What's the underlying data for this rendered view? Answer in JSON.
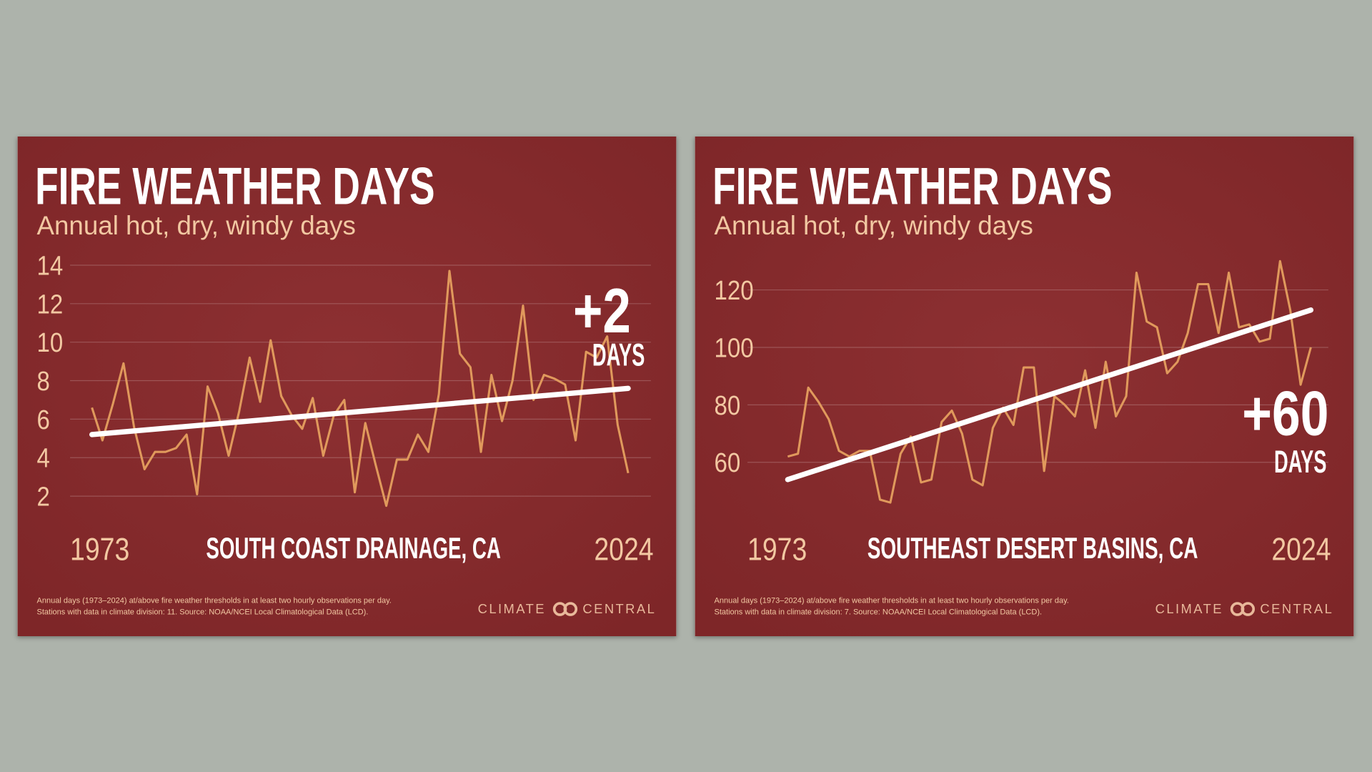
{
  "chart_data": [
    {
      "type": "line",
      "title": "FIRE WEATHER DAYS",
      "subtitle": "Annual hot, dry, windy days",
      "region": "SOUTH COAST DRAINAGE, CA",
      "annotation": "+2",
      "annotation_unit": "DAYS",
      "footnote": [
        "Annual days (1973–2024) at/above fire weather thresholds in at least two hourly observations per day.",
        "Stations with data in climate division: 11. Source: NOAA/NCEI Local Climatological Data (LCD)."
      ],
      "brand": [
        "CLIMATE",
        "CENTRAL"
      ],
      "x": [
        1973,
        1974,
        1975,
        1976,
        1977,
        1978,
        1979,
        1980,
        1981,
        1982,
        1983,
        1984,
        1985,
        1986,
        1987,
        1988,
        1989,
        1990,
        1991,
        1992,
        1993,
        1994,
        1995,
        1996,
        1997,
        1998,
        1999,
        2000,
        2001,
        2002,
        2003,
        2004,
        2005,
        2006,
        2007,
        2008,
        2009,
        2010,
        2011,
        2012,
        2013,
        2014,
        2015,
        2016,
        2017,
        2018,
        2019,
        2020,
        2021,
        2022,
        2023,
        2024
      ],
      "values": [
        6.6,
        4.9,
        6.8,
        8.9,
        5.6,
        3.4,
        4.3,
        4.3,
        4.5,
        5.2,
        2.1,
        7.7,
        6.3,
        4.1,
        6.4,
        9.2,
        6.9,
        10.1,
        7.2,
        6.2,
        5.5,
        7.1,
        4.1,
        6.2,
        7.0,
        2.2,
        5.8,
        3.6,
        1.5,
        3.9,
        3.9,
        5.2,
        4.3,
        7.3,
        13.7,
        9.4,
        8.7,
        4.3,
        8.3,
        5.9,
        8.0,
        11.9,
        7.0,
        8.3,
        8.1,
        7.8,
        4.9,
        9.5,
        9.2,
        10.3,
        5.7,
        3.2
      ],
      "color": "#e0995c",
      "trend": {
        "x": [
          1973,
          2024
        ],
        "values": [
          5.2,
          7.6
        ],
        "color": "#ffffff"
      },
      "xlim": [
        1973,
        2024
      ],
      "xticks": [
        1973,
        2024
      ],
      "ylim": [
        1,
        14.5
      ],
      "yticks": [
        2,
        4,
        6,
        8,
        10,
        12,
        14
      ],
      "grid": true
    },
    {
      "type": "line",
      "title": "FIRE WEATHER DAYS",
      "subtitle": "Annual hot, dry, windy days",
      "region": "SOUTHEAST DESERT BASINS, CA",
      "annotation": "+60",
      "annotation_unit": "DAYS",
      "footnote": [
        "Annual days (1973–2024) at/above fire weather thresholds in at least two hourly observations per day.",
        "Stations with data in climate division: 7. Source: NOAA/NCEI Local Climatological Data (LCD)."
      ],
      "brand": [
        "CLIMATE",
        "CENTRAL"
      ],
      "x": [
        1973,
        1974,
        1975,
        1976,
        1977,
        1978,
        1979,
        1980,
        1981,
        1982,
        1983,
        1984,
        1985,
        1986,
        1987,
        1988,
        1989,
        1990,
        1991,
        1992,
        1993,
        1994,
        1995,
        1996,
        1997,
        1998,
        1999,
        2000,
        2001,
        2002,
        2003,
        2004,
        2005,
        2006,
        2007,
        2008,
        2009,
        2010,
        2011,
        2012,
        2013,
        2014,
        2015,
        2016,
        2017,
        2018,
        2019,
        2020,
        2021,
        2022,
        2023,
        2024
      ],
      "values": [
        62,
        63,
        86,
        81,
        75,
        64,
        62,
        64,
        64,
        47,
        46,
        63,
        69,
        53,
        54,
        74,
        78,
        70,
        54,
        52,
        72,
        79,
        73,
        93,
        93,
        57,
        83,
        80,
        76,
        92,
        72,
        95,
        76,
        83,
        126,
        109,
        107,
        91,
        95,
        105,
        122,
        122,
        105,
        126,
        107,
        108,
        102,
        103,
        130,
        113,
        87,
        100
      ],
      "color": "#e0995c",
      "trend": {
        "x": [
          1973,
          2024
        ],
        "values": [
          54,
          113
        ],
        "color": "#ffffff"
      },
      "xlim": [
        1973,
        2024
      ],
      "xticks": [
        1973,
        2024
      ],
      "ylim": [
        40,
        135
      ],
      "yticks": [
        60,
        80,
        100,
        120
      ],
      "grid": true
    }
  ]
}
